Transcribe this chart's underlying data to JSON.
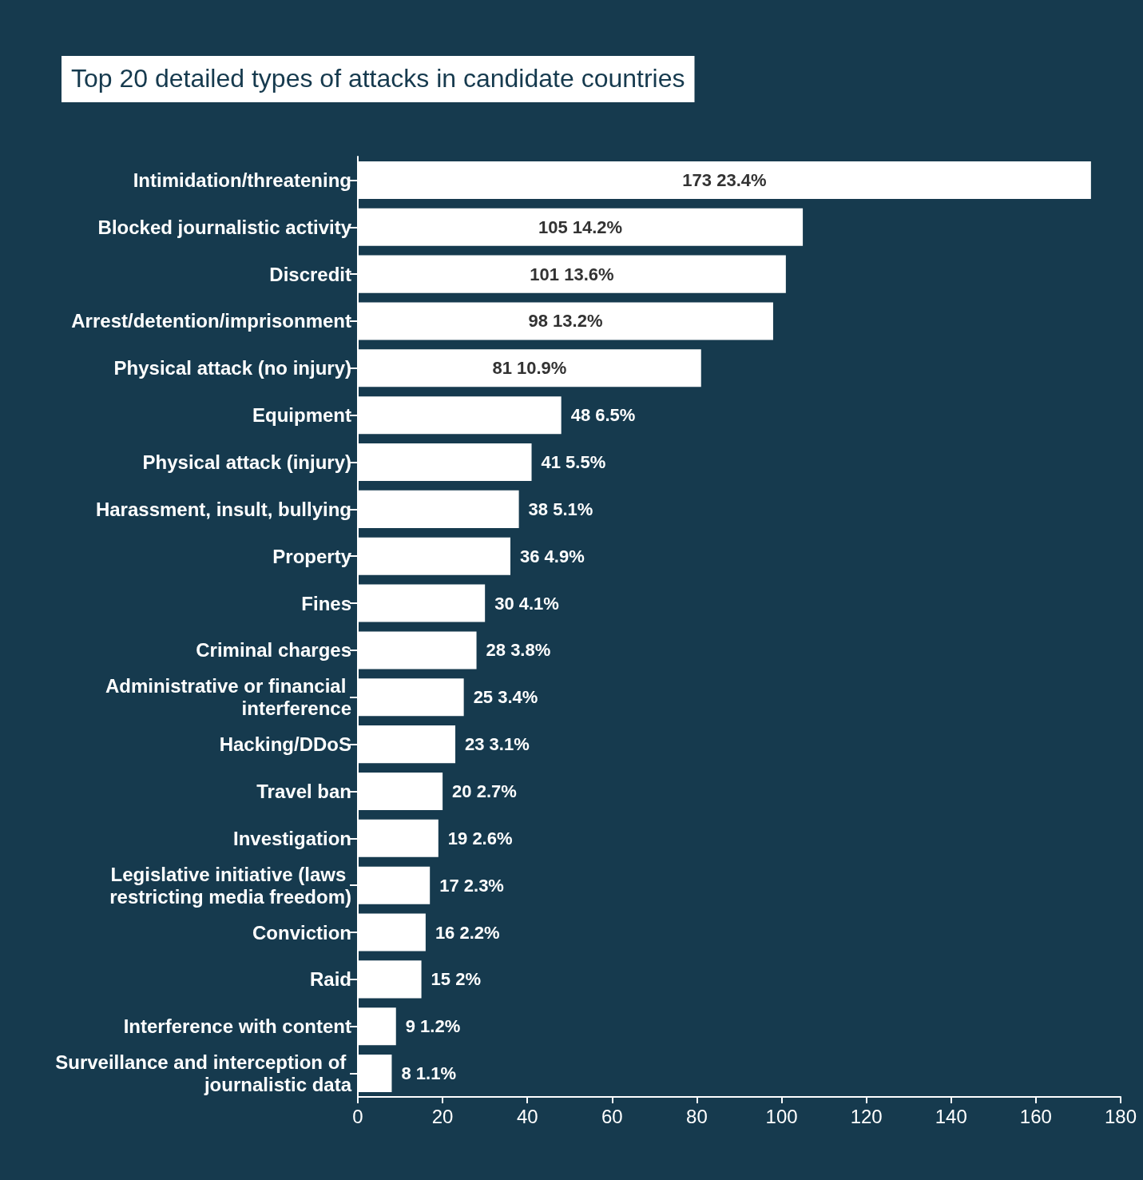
{
  "chart_data": {
    "type": "bar",
    "orientation": "horizontal",
    "title": "Top 20 detailed types of attacks in candidate countries",
    "categories": [
      "Intimidation/threatening",
      "Blocked journalistic activity",
      "Discredit",
      "Arrest/detention/imprisonment",
      "Physical attack (no injury)",
      "Equipment",
      "Physical attack (injury)",
      "Harassment, insult, bullying",
      "Property",
      "Fines",
      "Criminal charges",
      "Administrative or financial interference",
      "Hacking/DDoS",
      "Travel ban",
      "Investigation",
      "Legislative initiative (laws restricting media freedom)",
      "Conviction",
      "Raid",
      "Interference with content",
      "Surveillance and interception of journalistic data"
    ],
    "values": [
      173,
      105,
      101,
      98,
      81,
      48,
      41,
      38,
      36,
      30,
      28,
      25,
      23,
      20,
      19,
      17,
      16,
      15,
      9,
      8
    ],
    "value_labels": [
      "173 23.4%",
      "105 14.2%",
      "101 13.6%",
      "98 13.2%",
      "81 10.9%",
      "48 6.5%",
      "41 5.5%",
      "38 5.1%",
      "36 4.9%",
      "30 4.1%",
      "28 3.8%",
      "25 3.4%",
      "23 3.1%",
      "20 2.7%",
      "19 2.6%",
      "17 2.3%",
      "16 2.2%",
      "15 2%",
      "9 1.2%",
      "8 1.1%"
    ],
    "color": "#ffffff",
    "xlim": [
      0,
      180
    ],
    "xticks": [
      0,
      20,
      40,
      60,
      80,
      100,
      120,
      140,
      160,
      180
    ],
    "grid": false
  }
}
